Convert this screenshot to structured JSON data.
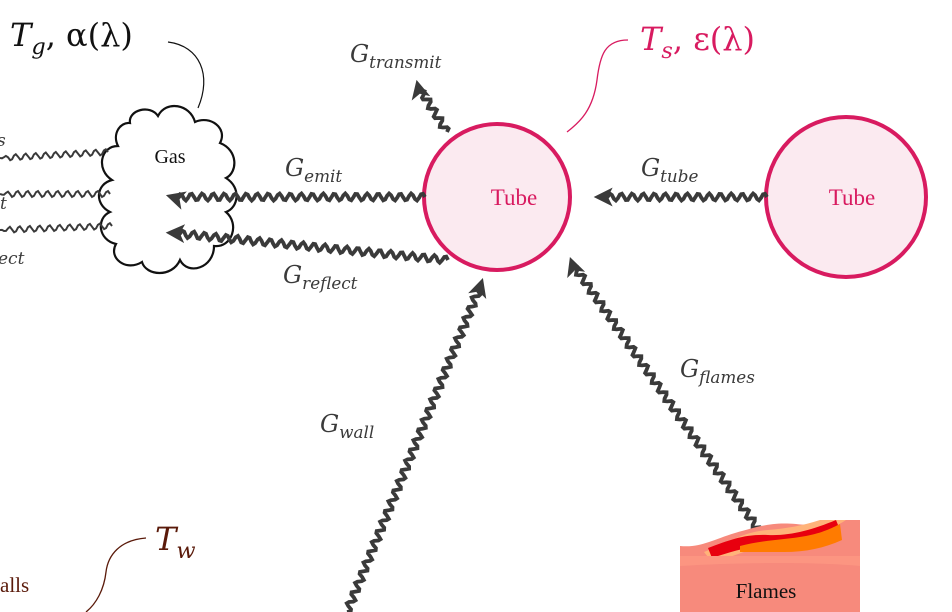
{
  "colors": {
    "tube_stroke": "#d81b60",
    "tube_fill": "#fbeaf0",
    "tube_label": "#d81b60",
    "arrow": "#3a3a3a",
    "gas_stroke": "#111111",
    "wall_label": "#5a1a0a",
    "flame_back": "#f78a7c",
    "flame_mid": "#ffb37a",
    "flame_red": "#e8000f",
    "flame_orange": "#ff7b00"
  },
  "labels": {
    "gas_params": {
      "base": "T",
      "sub": "g",
      "rest": ", α(λ)"
    },
    "tube_params": {
      "base": "T",
      "sub": "s",
      "rest": ", ε(λ)"
    },
    "wall_temp": {
      "base": "T",
      "sub": "w"
    },
    "gas": "Gas",
    "tube_left": "Tube",
    "tube_right": "Tube",
    "flames": "Flames",
    "walls_partial": "alls",
    "g_transmit": {
      "base": "G",
      "sub": "transmit"
    },
    "g_emit": {
      "base": "G",
      "sub": "emit"
    },
    "g_reflect": {
      "base": "G",
      "sub": "reflect"
    },
    "g_tube": {
      "base": "G",
      "sub": "tube"
    },
    "g_flames": {
      "base": "G",
      "sub": "flames"
    },
    "g_wall": {
      "base": "G",
      "sub": "wall"
    },
    "left_partial_1": "s",
    "left_partial_2": "t",
    "left_partial_3": "ect"
  }
}
